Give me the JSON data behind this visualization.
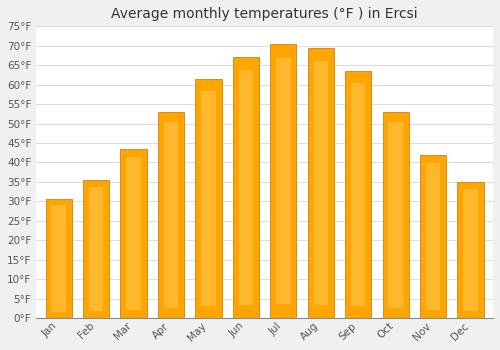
{
  "title": "Average monthly temperatures (°F ) in Ercsi",
  "months": [
    "Jan",
    "Feb",
    "Mar",
    "Apr",
    "May",
    "Jun",
    "Jul",
    "Aug",
    "Sep",
    "Oct",
    "Nov",
    "Dec"
  ],
  "values": [
    30.5,
    35.5,
    43.5,
    53.0,
    61.5,
    67.0,
    70.5,
    69.5,
    63.5,
    53.0,
    42.0,
    35.0
  ],
  "bar_color": "#FFA500",
  "bar_edge_color": "#CC8800",
  "ylim": [
    0,
    75
  ],
  "yticks": [
    0,
    5,
    10,
    15,
    20,
    25,
    30,
    35,
    40,
    45,
    50,
    55,
    60,
    65,
    70,
    75
  ],
  "background_color": "#f0f0f0",
  "plot_bg_color": "#ffffff",
  "grid_color": "#dddddd",
  "title_fontsize": 10,
  "tick_fontsize": 7.5,
  "title_color": "#333333",
  "tick_color": "#555555"
}
